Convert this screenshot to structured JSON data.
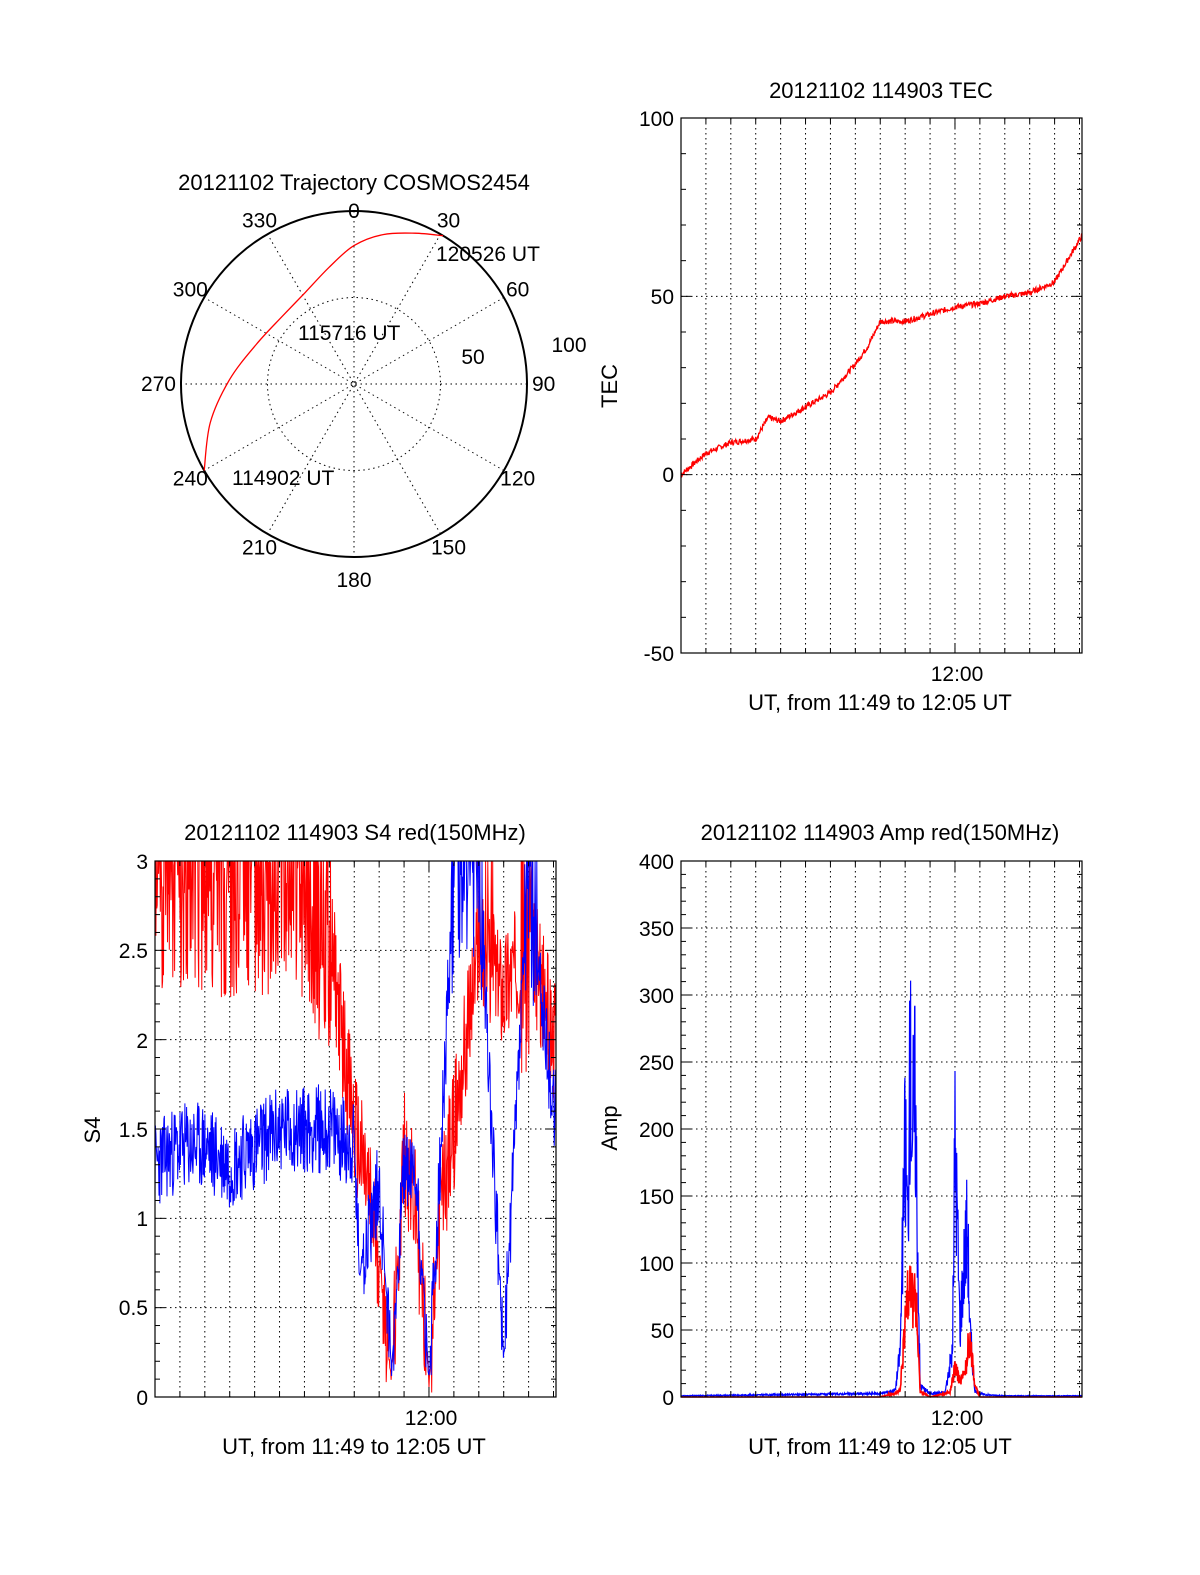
{
  "colors": {
    "red_series": "#ff0000",
    "blue_series": "#0000ff",
    "axes": "#000000"
  },
  "chart_data": [
    {
      "type": "polar-trajectory",
      "title": "20121102 Trajectory COSMOS2454",
      "azimuth_labels": [
        "0",
        "30",
        "60",
        "90",
        "120",
        "150",
        "180",
        "210",
        "240",
        "270",
        "300",
        "330"
      ],
      "radial_labels": [
        "50",
        "100"
      ],
      "trajectory": {
        "points": [
          {
            "az": 240,
            "r": 100
          },
          {
            "az": 255,
            "r": 86
          },
          {
            "az": 272,
            "r": 72
          },
          {
            "az": 292,
            "r": 61
          },
          {
            "az": 313,
            "r": 57
          },
          {
            "az": 332,
            "r": 60
          },
          {
            "az": 348,
            "r": 69
          },
          {
            "az": 0,
            "r": 80
          },
          {
            "az": 11,
            "r": 88
          },
          {
            "az": 22,
            "r": 94
          },
          {
            "az": 31,
            "r": 100
          }
        ],
        "annotations": [
          {
            "text": "114902 UT",
            "az": 240,
            "r": 100
          },
          {
            "text": "115716 UT",
            "az": 313,
            "r": 57
          },
          {
            "text": "120526 UT",
            "az": 31,
            "r": 100
          }
        ]
      }
    },
    {
      "type": "line",
      "title": "20121102 114903 TEC",
      "ylabel": "TEC",
      "xlabel": "UT, from 11:49 to 12:05 UT",
      "xtick_label": "12:00",
      "ylim": [
        -50,
        100
      ],
      "yticks": [
        "100",
        "50",
        "0",
        "-50"
      ],
      "x_minutes_after_1149": [
        0,
        1,
        2,
        3,
        3.5,
        4,
        5,
        6,
        7,
        7.5,
        8,
        9,
        10,
        11,
        12,
        13,
        14,
        15,
        15.5,
        16.1
      ],
      "tec": [
        0,
        6,
        9,
        10,
        16,
        15,
        19,
        23,
        31,
        36,
        43,
        43,
        45,
        47,
        48,
        50,
        51,
        54,
        60,
        67
      ]
    },
    {
      "type": "line",
      "title": "20121102 114903 S4 red(150MHz)",
      "ylabel": "S4",
      "xlabel": "UT, from 11:49 to 12:05 UT",
      "xtick_label": "12:00",
      "ylim": [
        0,
        3
      ],
      "yticks": [
        "3",
        "2.5",
        "2",
        "1.5",
        "1",
        "0.5",
        "0"
      ],
      "series": [
        {
          "color": "red",
          "x_minutes_after_1149": [
            0,
            1,
            2,
            3,
            4,
            5,
            6,
            7,
            8,
            8.5,
            9,
            9.5,
            10,
            10.5,
            11,
            11.5,
            12,
            13,
            14,
            15,
            16
          ],
          "values": [
            3,
            3,
            3,
            3,
            3,
            3,
            3,
            2.6,
            1.5,
            1.2,
            0.8,
            0.1,
            1.4,
            1.0,
            0.1,
            1.1,
            1.5,
            2.5,
            2.3,
            2.6,
            2.0
          ]
        },
        {
          "color": "blue",
          "x_minutes_after_1149": [
            0,
            1,
            2,
            3,
            4,
            5,
            6,
            7,
            8,
            8.2,
            9,
            9.5,
            10,
            10.5,
            11,
            11.5,
            12,
            13,
            14,
            15,
            16
          ],
          "values": [
            1.3,
            1.4,
            1.4,
            1.3,
            1.4,
            1.5,
            1.5,
            1.5,
            1.4,
            0.7,
            1.2,
            0.15,
            1.3,
            1.2,
            0.1,
            1.4,
            3,
            3,
            0.2,
            3,
            1.6
          ]
        }
      ]
    },
    {
      "type": "line",
      "title": "20121102 114903 Amp red(150MHz)",
      "ylabel": "Amp",
      "xlabel": "UT, from 11:49 to 12:05 UT",
      "xtick_label": "12:00",
      "ylim": [
        0,
        400
      ],
      "yticks": [
        "400",
        "350",
        "300",
        "250",
        "200",
        "150",
        "100",
        "50",
        "0"
      ],
      "series": [
        {
          "color": "blue",
          "x_minutes_after_1149": [
            0,
            4,
            8,
            8.6,
            8.8,
            9.0,
            9.1,
            9.2,
            9.3,
            9.4,
            9.6,
            10,
            10.6,
            10.9,
            11.0,
            11.1,
            11.2,
            11.3,
            11.5,
            11.6,
            11.8,
            12.0,
            12.2,
            13,
            16
          ],
          "values": [
            1,
            2,
            3,
            6,
            40,
            230,
            150,
            295,
            240,
            270,
            10,
            3,
            4,
            40,
            230,
            150,
            60,
            100,
            155,
            60,
            5,
            3,
            2,
            1,
            1
          ]
        },
        {
          "color": "red",
          "x_minutes_after_1149": [
            0,
            4,
            8,
            8.8,
            9.0,
            9.1,
            9.2,
            9.3,
            9.4,
            9.6,
            10,
            10.8,
            11.0,
            11.2,
            11.4,
            11.6,
            11.8,
            12.0,
            13,
            16
          ],
          "values": [
            0,
            0,
            0,
            5,
            60,
            100,
            110,
            80,
            95,
            5,
            0,
            4,
            25,
            15,
            20,
            55,
            10,
            0,
            0,
            0
          ]
        }
      ]
    }
  ]
}
